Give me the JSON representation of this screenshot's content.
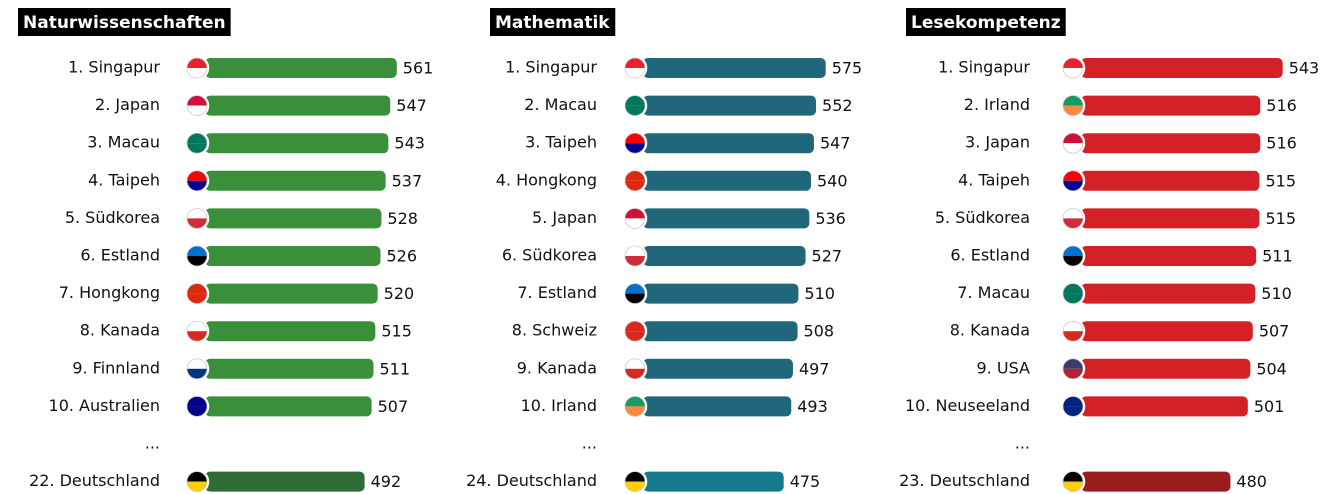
{
  "chart_data": [
    {
      "type": "bar",
      "title": "Naturwissenschaften",
      "categories": [
        "1. Singapur",
        "2. Japan",
        "3. Macau",
        "4. Taipeh",
        "5. Südkorea",
        "6. Estland",
        "7. Hongkong",
        "8. Kanada",
        "9. Finnland",
        "10. Australien",
        "...",
        "22. Deutschland"
      ],
      "values": [
        561,
        547,
        543,
        537,
        528,
        526,
        520,
        515,
        511,
        507,
        null,
        492
      ],
      "colors": [
        "#3a8f3a",
        "#3a8f3a",
        "#3a8f3a",
        "#3a8f3a",
        "#3a8f3a",
        "#3a8f3a",
        "#3a8f3a",
        "#3a8f3a",
        "#3a8f3a",
        "#3a8f3a",
        null,
        "#2e6b35"
      ],
      "flags": [
        [
          "#e8212e",
          "#ffffff"
        ],
        [
          "#d0103a",
          "#ffffff"
        ],
        [
          "#00785e",
          "#00785e"
        ],
        [
          "#fe0000",
          "#000095"
        ],
        [
          "#ffffff",
          "#cd2e3a"
        ],
        [
          "#0072ce",
          "#000000"
        ],
        [
          "#de2910",
          "#de2910"
        ],
        [
          "#ffffff",
          "#d52b1e"
        ],
        [
          "#ffffff",
          "#003580"
        ],
        [
          "#00008b",
          "#00008b"
        ],
        null,
        [
          "#000000",
          "#ffce00"
        ]
      ],
      "xlim": [
        150,
        600
      ]
    },
    {
      "type": "bar",
      "title": "Mathematik",
      "categories": [
        "1. Singapur",
        "2. Macau",
        "3. Taipeh",
        "4. Hongkong",
        "5. Japan",
        "6. Südkorea",
        "7. Estland",
        "8. Schweiz",
        "9. Kanada",
        "10. Irland",
        "...",
        "24. Deutschland"
      ],
      "values": [
        575,
        552,
        547,
        540,
        536,
        527,
        510,
        508,
        497,
        493,
        null,
        475
      ],
      "colors": [
        "#21677c",
        "#21677c",
        "#21677c",
        "#21677c",
        "#21677c",
        "#21677c",
        "#21677c",
        "#21677c",
        "#21677c",
        "#21677c",
        null,
        "#167a8c"
      ],
      "flags": [
        [
          "#e8212e",
          "#ffffff"
        ],
        [
          "#00785e",
          "#00785e"
        ],
        [
          "#fe0000",
          "#000095"
        ],
        [
          "#de2910",
          "#de2910"
        ],
        [
          "#d0103a",
          "#ffffff"
        ],
        [
          "#ffffff",
          "#cd2e3a"
        ],
        [
          "#0072ce",
          "#000000"
        ],
        [
          "#da291c",
          "#da291c"
        ],
        [
          "#ffffff",
          "#d52b1e"
        ],
        [
          "#169b62",
          "#ff883e"
        ],
        null,
        [
          "#000000",
          "#ffce00"
        ]
      ],
      "xlim": [
        140,
        640
      ]
    },
    {
      "type": "bar",
      "title": "Lesekompetenz",
      "categories": [
        "1. Singapur",
        "2. Irland",
        "3. Japan",
        "4. Taipeh",
        "5. Südkorea",
        "6. Estland",
        "7. Macau",
        "8. Kanada",
        "9. USA",
        "10. Neuseeland",
        "...",
        "23. Deutschland"
      ],
      "values": [
        543,
        516,
        516,
        515,
        515,
        511,
        510,
        507,
        504,
        501,
        null,
        480
      ],
      "colors": [
        "#d42027",
        "#d42027",
        "#d42027",
        "#d42027",
        "#d42027",
        "#d42027",
        "#d42027",
        "#d42027",
        "#d42027",
        "#d42027",
        null,
        "#9b1c1c"
      ],
      "flags": [
        [
          "#e8212e",
          "#ffffff"
        ],
        [
          "#169b62",
          "#ff883e"
        ],
        [
          "#d0103a",
          "#ffffff"
        ],
        [
          "#fe0000",
          "#000095"
        ],
        [
          "#ffffff",
          "#cd2e3a"
        ],
        [
          "#0072ce",
          "#000000"
        ],
        [
          "#00785e",
          "#00785e"
        ],
        [
          "#ffffff",
          "#d52b1e"
        ],
        [
          "#3c3b6e",
          "#b22234"
        ],
        [
          "#00247d",
          "#00247d"
        ],
        null,
        [
          "#000000",
          "#ffce00"
        ]
      ],
      "xlim": [
        300,
        553
      ]
    }
  ]
}
